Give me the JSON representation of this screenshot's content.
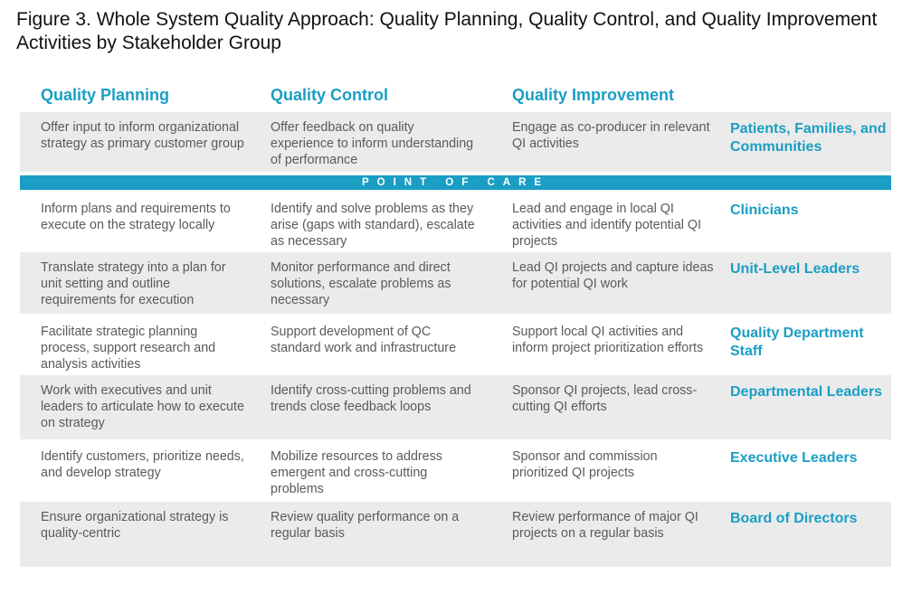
{
  "figure": {
    "title": "Figure 3. Whole System Quality Approach: Quality Planning, Quality Control, and Quality Improvement Activities by Stakeholder Group"
  },
  "headers": {
    "planning": "Quality Planning",
    "control": "Quality Control",
    "improvement": "Quality Improvement"
  },
  "divider": {
    "point_of_care": "POINT OF CARE"
  },
  "rows": [
    {
      "planning": "Offer input to inform organizational strategy as primary customer group",
      "control": "Offer feedback on quality experience to inform understanding of performance",
      "improvement": "Engage as co-producer in relevant QI activities",
      "stakeholder": "Patients, Families, and Communities"
    },
    {
      "planning": "Inform plans and requirements to execute on the strategy locally",
      "control": "Identify and solve problems as they arise (gaps with standard), escalate as necessary",
      "improvement": "Lead and engage in local QI activities and identify potential QI projects",
      "stakeholder": "Clinicians"
    },
    {
      "planning": "Translate strategy into a plan for unit setting and outline requirements for execution",
      "control": "Monitor performance and direct solutions, escalate problems as necessary",
      "improvement": "Lead QI projects and capture ideas for potential QI work",
      "stakeholder": "Unit-Level Leaders"
    },
    {
      "planning": "Facilitate strategic planning process, support research and analysis activities",
      "control": "Support development of QC standard work and infrastructure",
      "improvement": "Support local QI activities and inform project prioritization efforts",
      "stakeholder": "Quality Department Staff"
    },
    {
      "planning": "Work with executives and unit leaders to articulate how to execute on strategy",
      "control": "Identify cross-cutting problems and trends close feedback loops",
      "improvement": "Sponsor QI projects, lead cross-cutting QI efforts",
      "stakeholder": "Departmental Leaders"
    },
    {
      "planning": "Identify customers, prioritize needs, and develop strategy",
      "control": "Mobilize resources to address emergent and cross-cutting problems",
      "improvement": "Sponsor and commission prioritized QI projects",
      "stakeholder": "Executive Leaders"
    },
    {
      "planning": "Ensure organizational strategy is quality-centric",
      "control": "Review quality performance on a regular basis",
      "improvement": "Review performance of major QI projects on a regular basis",
      "stakeholder": "Board of Directors"
    }
  ],
  "colors": {
    "accent": "#1a9ec4",
    "row_shade": "#ebebeb",
    "body_text": "#5a5a5a"
  }
}
